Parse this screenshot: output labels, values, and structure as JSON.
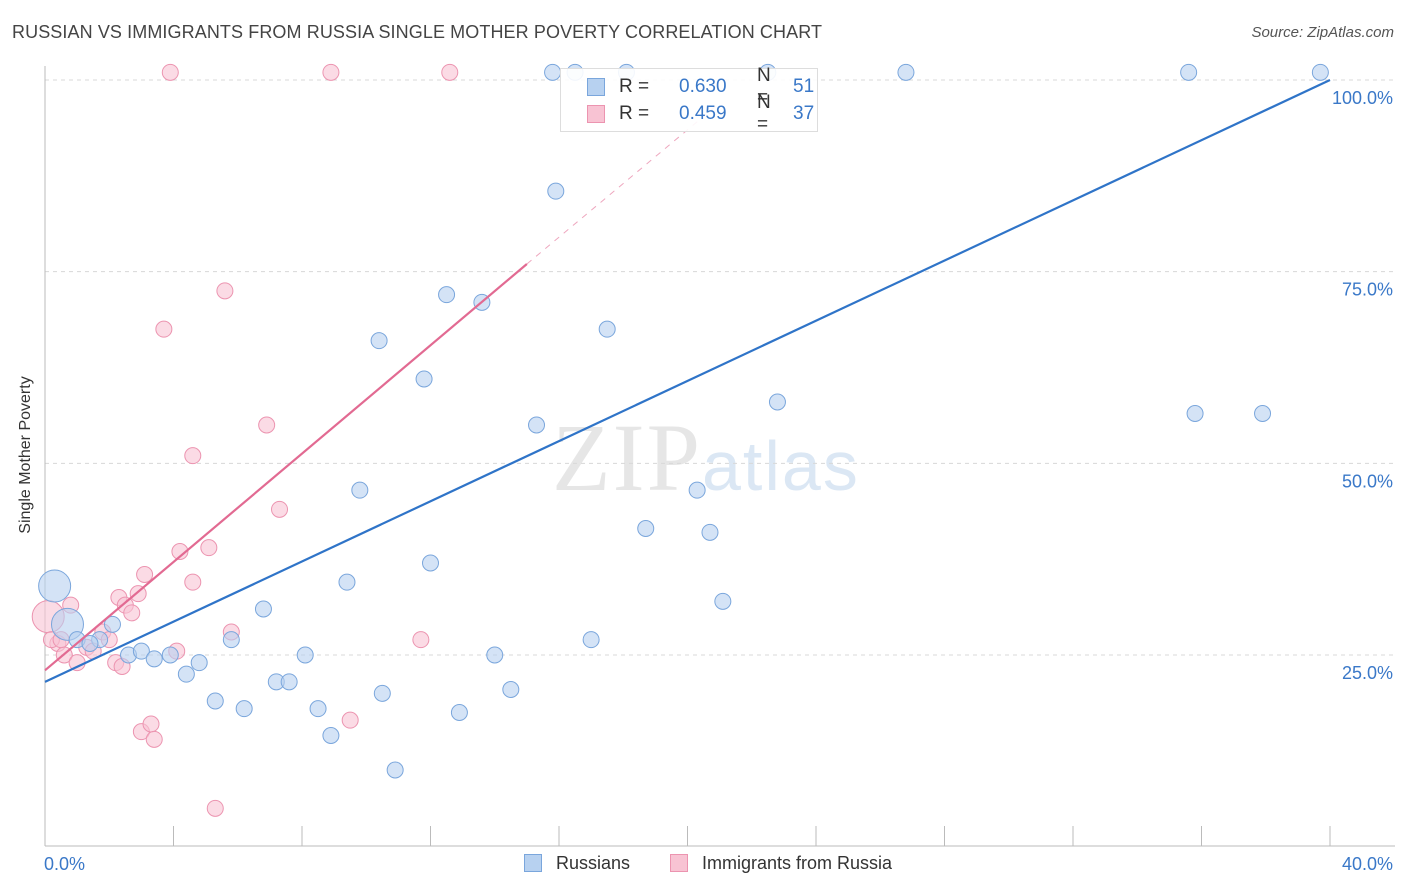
{
  "title": "RUSSIAN VS IMMIGRANTS FROM RUSSIA SINGLE MOTHER POVERTY CORRELATION CHART",
  "source": "Source: ZipAtlas.com",
  "watermark": {
    "zip": "ZIP",
    "atlas": "atlas"
  },
  "legend": {
    "russians": {
      "r_label": "R = ",
      "r_value": "0.630",
      "n_label": "N = ",
      "n_value": "51"
    },
    "immigrants": {
      "r_label": "R = ",
      "r_value": "0.459",
      "n_label": "N = ",
      "n_value": "37"
    }
  },
  "colors": {
    "russians_fill": "#b7d1f0",
    "russians_stroke": "#7aa6dc",
    "russians_line": "#2f74c8",
    "immigrants_fill": "#f8c3d3",
    "immigrants_stroke": "#ec94b0",
    "immigrants_line": "#e26a92",
    "tick_label": "#3a78c8",
    "grid": "#d8d8d8"
  },
  "chart_data": {
    "type": "scatter",
    "title": "RUSSIAN VS IMMIGRANTS FROM RUSSIA SINGLE MOTHER POVERTY CORRELATION CHART",
    "xlabel": "",
    "ylabel": "Single Mother Poverty",
    "xlim": [
      0,
      40
    ],
    "ylim": [
      0,
      100
    ],
    "x_tick_labels": [
      "0.0%",
      "40.0%"
    ],
    "y_tick_labels": [
      "25.0%",
      "50.0%",
      "75.0%",
      "100.0%"
    ],
    "y_ticks": [
      25,
      50,
      75,
      100
    ],
    "grid": true,
    "legend_position": "top-center",
    "series": [
      {
        "name": "Russians",
        "color": "#b7d1f0",
        "trend": {
          "x": [
            0,
            40
          ],
          "y": [
            21.5,
            100
          ]
        },
        "points": [
          {
            "x": 0.3,
            "y": 34,
            "big": true
          },
          {
            "x": 0.7,
            "y": 29,
            "big": true
          },
          {
            "x": 1.0,
            "y": 27
          },
          {
            "x": 1.7,
            "y": 27
          },
          {
            "x": 2.1,
            "y": 29
          },
          {
            "x": 2.6,
            "y": 25
          },
          {
            "x": 3.0,
            "y": 25.5
          },
          {
            "x": 3.4,
            "y": 24.5
          },
          {
            "x": 3.9,
            "y": 25
          },
          {
            "x": 4.4,
            "y": 22.5
          },
          {
            "x": 4.8,
            "y": 24
          },
          {
            "x": 5.3,
            "y": 19
          },
          {
            "x": 5.8,
            "y": 27
          },
          {
            "x": 6.2,
            "y": 18
          },
          {
            "x": 6.8,
            "y": 31
          },
          {
            "x": 7.2,
            "y": 21.5
          },
          {
            "x": 7.6,
            "y": 21.5
          },
          {
            "x": 8.1,
            "y": 25
          },
          {
            "x": 8.5,
            "y": 18
          },
          {
            "x": 8.9,
            "y": 14.5
          },
          {
            "x": 9.4,
            "y": 34.5
          },
          {
            "x": 9.8,
            "y": 46.5
          },
          {
            "x": 10.4,
            "y": 66
          },
          {
            "x": 10.5,
            "y": 20
          },
          {
            "x": 10.9,
            "y": 10
          },
          {
            "x": 11.8,
            "y": 61
          },
          {
            "x": 12.0,
            "y": 37
          },
          {
            "x": 12.5,
            "y": 72
          },
          {
            "x": 12.9,
            "y": 17.5
          },
          {
            "x": 13.6,
            "y": 71
          },
          {
            "x": 14.0,
            "y": 25
          },
          {
            "x": 14.5,
            "y": 20.5
          },
          {
            "x": 15.3,
            "y": 55
          },
          {
            "x": 15.8,
            "y": 101
          },
          {
            "x": 15.9,
            "y": 85.5
          },
          {
            "x": 16.5,
            "y": 101
          },
          {
            "x": 17.0,
            "y": 27
          },
          {
            "x": 17.5,
            "y": 67.5
          },
          {
            "x": 18.1,
            "y": 101
          },
          {
            "x": 18.7,
            "y": 41.5
          },
          {
            "x": 20.3,
            "y": 46.5
          },
          {
            "x": 20.7,
            "y": 41
          },
          {
            "x": 21.1,
            "y": 32
          },
          {
            "x": 22.5,
            "y": 101
          },
          {
            "x": 22.8,
            "y": 58
          },
          {
            "x": 26.8,
            "y": 101
          },
          {
            "x": 35.6,
            "y": 101
          },
          {
            "x": 35.8,
            "y": 56.5
          },
          {
            "x": 37.9,
            "y": 56.5
          },
          {
            "x": 39.7,
            "y": 101
          },
          {
            "x": 1.4,
            "y": 26.5
          }
        ]
      },
      {
        "name": "Immigrants from Russia",
        "color": "#f8c3d3",
        "trend": {
          "x": [
            0,
            15
          ],
          "y": [
            23,
            76
          ],
          "dashed_to": {
            "x": 21,
            "y": 97
          }
        },
        "points": [
          {
            "x": 0.1,
            "y": 30,
            "big": true
          },
          {
            "x": 0.4,
            "y": 26.5
          },
          {
            "x": 0.6,
            "y": 25
          },
          {
            "x": 0.8,
            "y": 31.5
          },
          {
            "x": 1.0,
            "y": 24
          },
          {
            "x": 1.3,
            "y": 26
          },
          {
            "x": 1.5,
            "y": 25.5
          },
          {
            "x": 1.8,
            "y": 28
          },
          {
            "x": 2.0,
            "y": 27
          },
          {
            "x": 2.2,
            "y": 24
          },
          {
            "x": 2.3,
            "y": 32.5
          },
          {
            "x": 2.4,
            "y": 23.5
          },
          {
            "x": 2.5,
            "y": 31.5
          },
          {
            "x": 2.7,
            "y": 30.5
          },
          {
            "x": 2.9,
            "y": 33
          },
          {
            "x": 3.0,
            "y": 15
          },
          {
            "x": 3.1,
            "y": 35.5
          },
          {
            "x": 3.3,
            "y": 16
          },
          {
            "x": 3.4,
            "y": 14
          },
          {
            "x": 3.7,
            "y": 67.5
          },
          {
            "x": 3.9,
            "y": 101
          },
          {
            "x": 4.1,
            "y": 25.5
          },
          {
            "x": 4.2,
            "y": 38.5
          },
          {
            "x": 4.6,
            "y": 34.5
          },
          {
            "x": 4.6,
            "y": 51
          },
          {
            "x": 5.1,
            "y": 39
          },
          {
            "x": 5.3,
            "y": 5
          },
          {
            "x": 5.6,
            "y": 72.5
          },
          {
            "x": 5.8,
            "y": 28
          },
          {
            "x": 6.9,
            "y": 55
          },
          {
            "x": 7.3,
            "y": 44
          },
          {
            "x": 8.9,
            "y": 101
          },
          {
            "x": 9.5,
            "y": 16.5
          },
          {
            "x": 11.7,
            "y": 27
          },
          {
            "x": 12.6,
            "y": 101
          },
          {
            "x": 0.2,
            "y": 27
          },
          {
            "x": 0.5,
            "y": 27
          }
        ]
      }
    ]
  }
}
